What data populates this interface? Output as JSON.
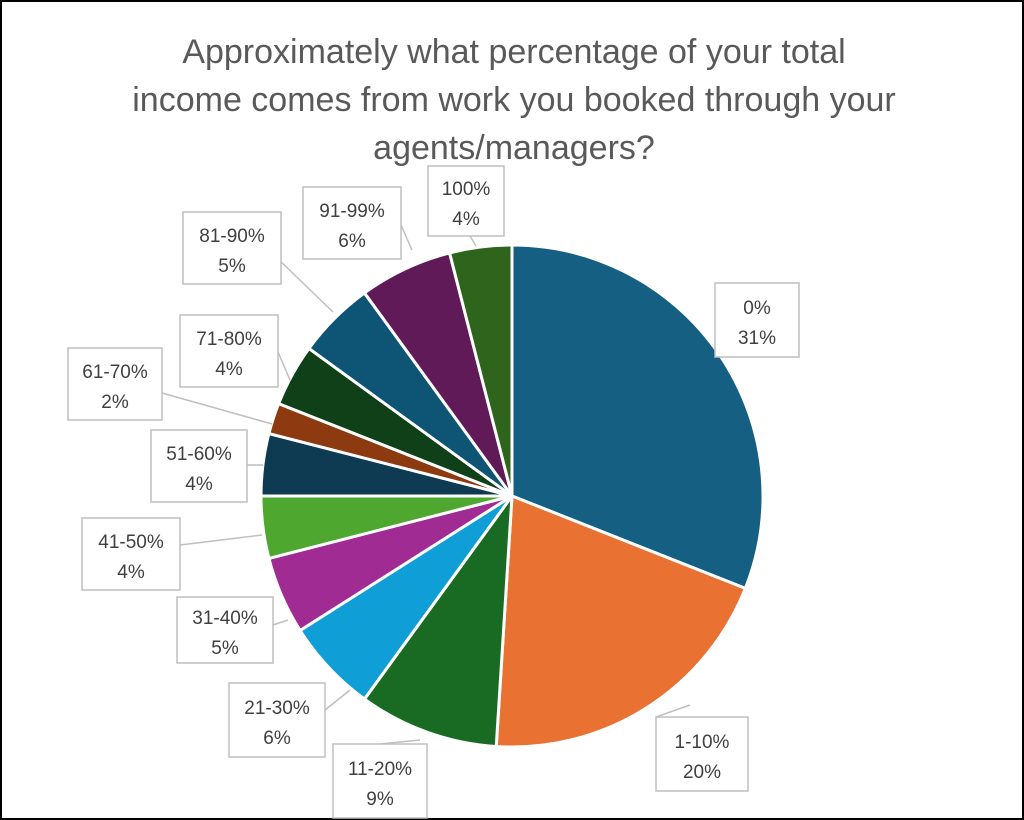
{
  "chart_data": {
    "type": "pie",
    "title": "Approximately what percentage of your total income comes from work you booked through your agents/managers?",
    "title_lines": [
      "Approximately what percentage of your total",
      "income comes from work you booked through your",
      "agents/managers?"
    ],
    "slices": [
      {
        "label": "0%",
        "value": 31,
        "color": "#156082"
      },
      {
        "label": "1-10%",
        "value": 20,
        "color": "#E97132"
      },
      {
        "label": "11-20%",
        "value": 9,
        "color": "#196B24"
      },
      {
        "label": "21-30%",
        "value": 6,
        "color": "#0F9ED5"
      },
      {
        "label": "31-40%",
        "value": 5,
        "color": "#A02B93"
      },
      {
        "label": "41-50%",
        "value": 4,
        "color": "#4EA72E"
      },
      {
        "label": "51-60%",
        "value": 4,
        "color": "#0E3A52"
      },
      {
        "label": "61-70%",
        "value": 2,
        "color": "#8E3A11"
      },
      {
        "label": "71-80%",
        "value": 4,
        "color": "#0F4017"
      },
      {
        "label": "81-90%",
        "value": 5,
        "color": "#0E5475"
      },
      {
        "label": "91-99%",
        "value": 6,
        "color": "#601A58"
      },
      {
        "label": "100%",
        "value": 4,
        "color": "#2E641C"
      }
    ],
    "value_suffix": "%",
    "legend": "none"
  }
}
